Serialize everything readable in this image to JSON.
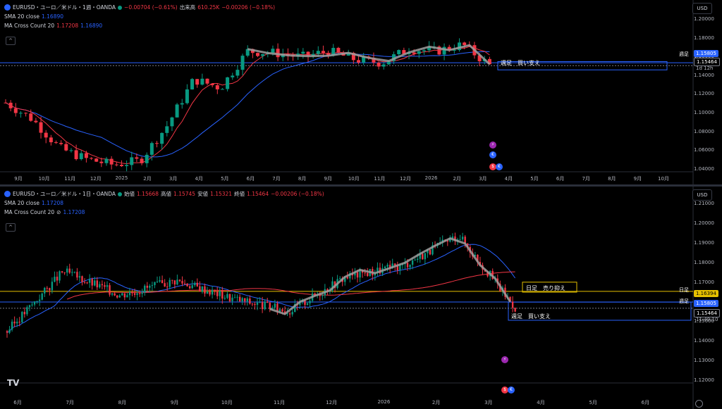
{
  "weekly": {
    "symbol_line": "EURUSD・ユーロ／米ドル・1週・OANDA",
    "change": "−0.00704 (−0.61%)",
    "volume_label": "出来高",
    "volume_value": "610.25K",
    "change2": "−0.00206 (−0.18%)",
    "sma_label": "SMA 20 close",
    "sma_value": "1.16890",
    "ma_label": "MA Cross Count 20",
    "ma_value1": "1.17208",
    "ma_value2": "1.16890",
    "currency": "USD",
    "price_labels": {
      "weekly_label": "週足",
      "weekly_price": "1.15805",
      "last_price": "1.15464",
      "countdown": "1d 12h"
    },
    "zone_label": "週足　買い支え",
    "y_ticks": [
      "1.20000",
      "1.18000",
      "1.16000",
      "1.14000",
      "1.12000",
      "1.10000",
      "1.08000",
      "1.06000",
      "1.04000"
    ],
    "x_ticks": [
      "9月",
      "10月",
      "11月",
      "12月",
      "2025",
      "2月",
      "3月",
      "4月",
      "5月",
      "6月",
      "7月",
      "8月",
      "9月",
      "10月",
      "11月",
      "12月",
      "2026",
      "2月",
      "3月",
      "4月",
      "5月",
      "6月",
      "7月",
      "8月",
      "9月",
      "10月"
    ]
  },
  "daily": {
    "symbol_line": "EURUSD・ユーロ／米ドル・1日・OANDA",
    "o_label": "始値",
    "o_value": "1.15668",
    "h_label": "高値",
    "h_value": "1.15745",
    "l_label": "安値",
    "l_value": "1.15321",
    "c_label": "終値",
    "c_value": "1.15464",
    "change": "−0.00206 (−0.18%)",
    "sma_label": "SMA 20 close",
    "sma_value": "1.17208",
    "ma_label": "MA Cross Count 20",
    "ma_value": "1.17208",
    "currency": "USD",
    "price_labels": {
      "daily_label": "日足",
      "daily_price": "1.16394",
      "weekly_label": "週足",
      "weekly_price": "1.15805",
      "last_price": "1.15464",
      "countdown": "11:49:10"
    },
    "zone_sell": "日足　売り抑え",
    "zone_buy": "週足　買い支え",
    "y_ticks": [
      "1.21000",
      "1.20000",
      "1.19000",
      "1.18000",
      "1.17000",
      "1.16000",
      "1.15000",
      "1.14000",
      "1.13000",
      "1.12000"
    ],
    "x_ticks": [
      "6月",
      "7月",
      "8月",
      "9月",
      "10月",
      "11月",
      "12月",
      "2026",
      "2月",
      "3月",
      "4月",
      "5月",
      "6月"
    ]
  },
  "colors": {
    "up": "#089981",
    "down": "#f23645",
    "sma": "#2962ff",
    "ma": "#f23645",
    "zigzag": "#9e9e9e",
    "yellow_zone": "#e5c000",
    "blue_zone": "#2962ff"
  },
  "chart_data": [
    {
      "type": "candlestick",
      "title": "EURUSD・ユーロ／米ドル・1週・OANDA",
      "x": [
        "2024-09",
        "2024-10",
        "2024-11",
        "2024-12",
        "2025-01",
        "2025-02",
        "2025-03",
        "2025-04",
        "2025-05",
        "2025-06",
        "2025-07",
        "2025-08",
        "2025-09",
        "2025-10",
        "2025-11",
        "2025-12",
        "2026-01",
        "2026-02",
        "2026-03"
      ],
      "close": [
        1.11,
        1.09,
        1.055,
        1.042,
        1.035,
        1.04,
        1.082,
        1.138,
        1.128,
        1.172,
        1.17,
        1.165,
        1.172,
        1.162,
        1.158,
        1.175,
        1.172,
        1.18,
        1.155
      ],
      "ylim": [
        1.03,
        1.21
      ],
      "series": [
        {
          "name": "SMA 20 close",
          "value": 1.1689
        },
        {
          "name": "MA Cross Count 20",
          "value": 1.17208
        }
      ]
    },
    {
      "type": "candlestick",
      "title": "EURUSD・ユーロ／米ドル・1日・OANDA",
      "x": [
        "2025-06",
        "2025-07",
        "2025-08",
        "2025-09",
        "2025-10",
        "2025-11",
        "2025-12",
        "2026-01",
        "2026-02",
        "2026-03"
      ],
      "close": [
        1.142,
        1.175,
        1.162,
        1.17,
        1.16,
        1.153,
        1.172,
        1.178,
        1.195,
        1.155
      ],
      "ylim": [
        1.115,
        1.212
      ],
      "series": [
        {
          "name": "SMA 20 close",
          "value": 1.17208
        },
        {
          "name": "MA Cross Count 20",
          "value": 1.17208
        }
      ]
    }
  ]
}
